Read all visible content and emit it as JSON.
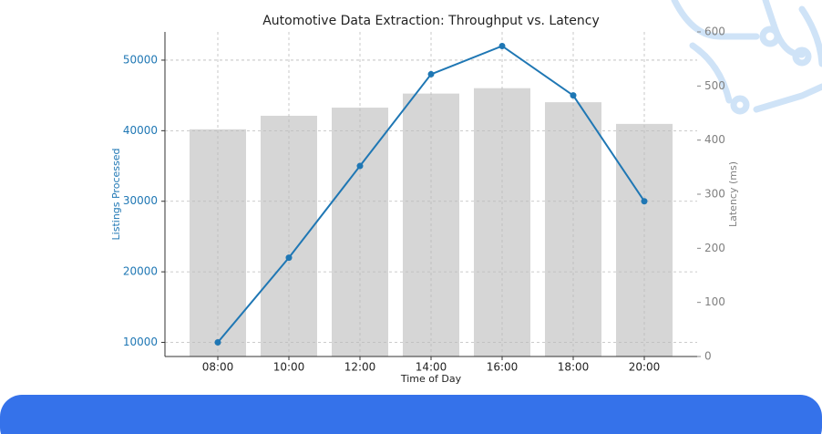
{
  "chart_data": {
    "type": "bar",
    "title": "Automotive Data Extraction: Throughput vs. Latency",
    "x_label": "Time of Day",
    "y_label": "Listings Processed",
    "y2_label": "Latency (ms)",
    "categories": [
      "08:00",
      "10:00",
      "12:00",
      "14:00",
      "16:00",
      "18:00",
      "20:00"
    ],
    "series": [
      {
        "type": "bar",
        "axis": "y2",
        "color": "#d6d6d6",
        "values": [
          420,
          445,
          460,
          486,
          496,
          470,
          430
        ]
      },
      {
        "type": "line",
        "color": "#1f77b4",
        "values": [
          10000,
          22000,
          35000,
          48000,
          52000,
          45000,
          30000
        ]
      }
    ],
    "ylim": [
      8000,
      54000
    ],
    "yticks": [
      10000,
      20000,
      30000,
      40000,
      50000
    ],
    "y2lim": [
      0,
      600
    ],
    "y2ticks": [
      0,
      100,
      200,
      300,
      400,
      500,
      600
    ],
    "grid": true,
    "y_color": "#1f77b4",
    "y2_color": "#808080"
  }
}
